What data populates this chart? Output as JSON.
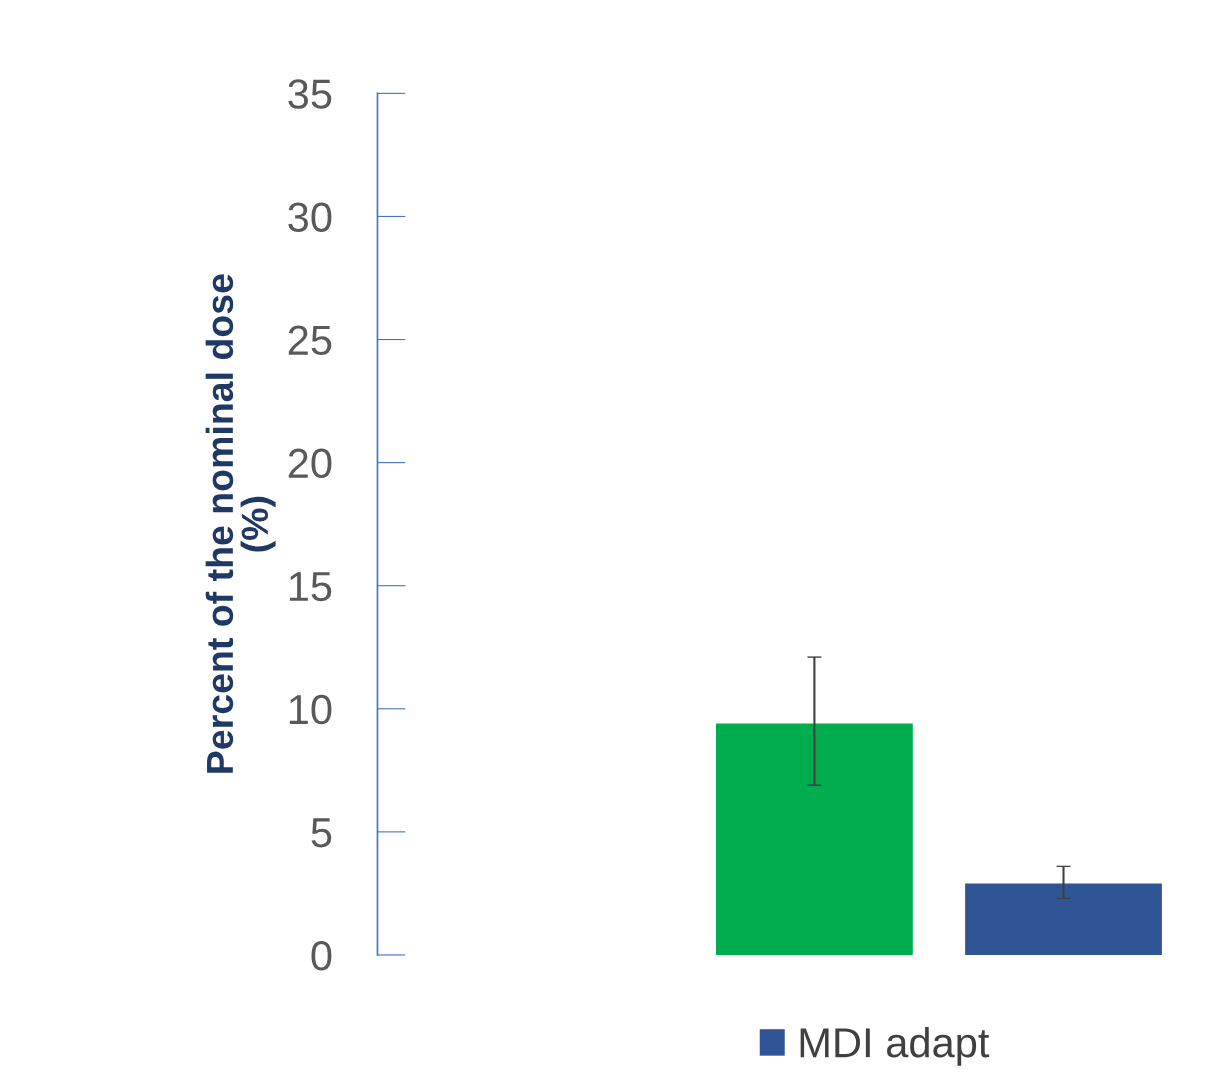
{
  "chart_data": {
    "type": "bar",
    "ylabel": "Percent of the nominal dose\n(%)",
    "categories": [
      null
    ],
    "series": [
      {
        "color": "#00ad4e",
        "values": [
          9.4
        ],
        "errors": [
          [
            6.9,
            12.1
          ]
        ]
      },
      {
        "name": "MDI adapt",
        "color": "#2f5597",
        "values": [
          2.9
        ],
        "errors": [
          [
            2.3,
            3.6
          ]
        ]
      }
    ],
    "ylim": [
      0,
      35
    ],
    "yticks": [
      0,
      5,
      10,
      15,
      20,
      25,
      30,
      35
    ],
    "grid": false,
    "legend": "bottom",
    "tick_labels": "y"
  }
}
